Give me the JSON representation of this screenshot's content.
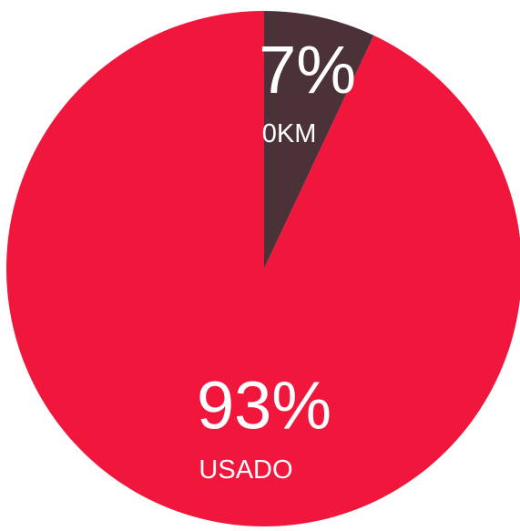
{
  "chart_data": {
    "type": "pie",
    "categories": [
      "0KM",
      "USADO"
    ],
    "values": [
      7,
      93
    ],
    "value_labels": [
      "7%",
      "93%"
    ],
    "colors": [
      "#4a3238",
      "#f0163c"
    ]
  }
}
